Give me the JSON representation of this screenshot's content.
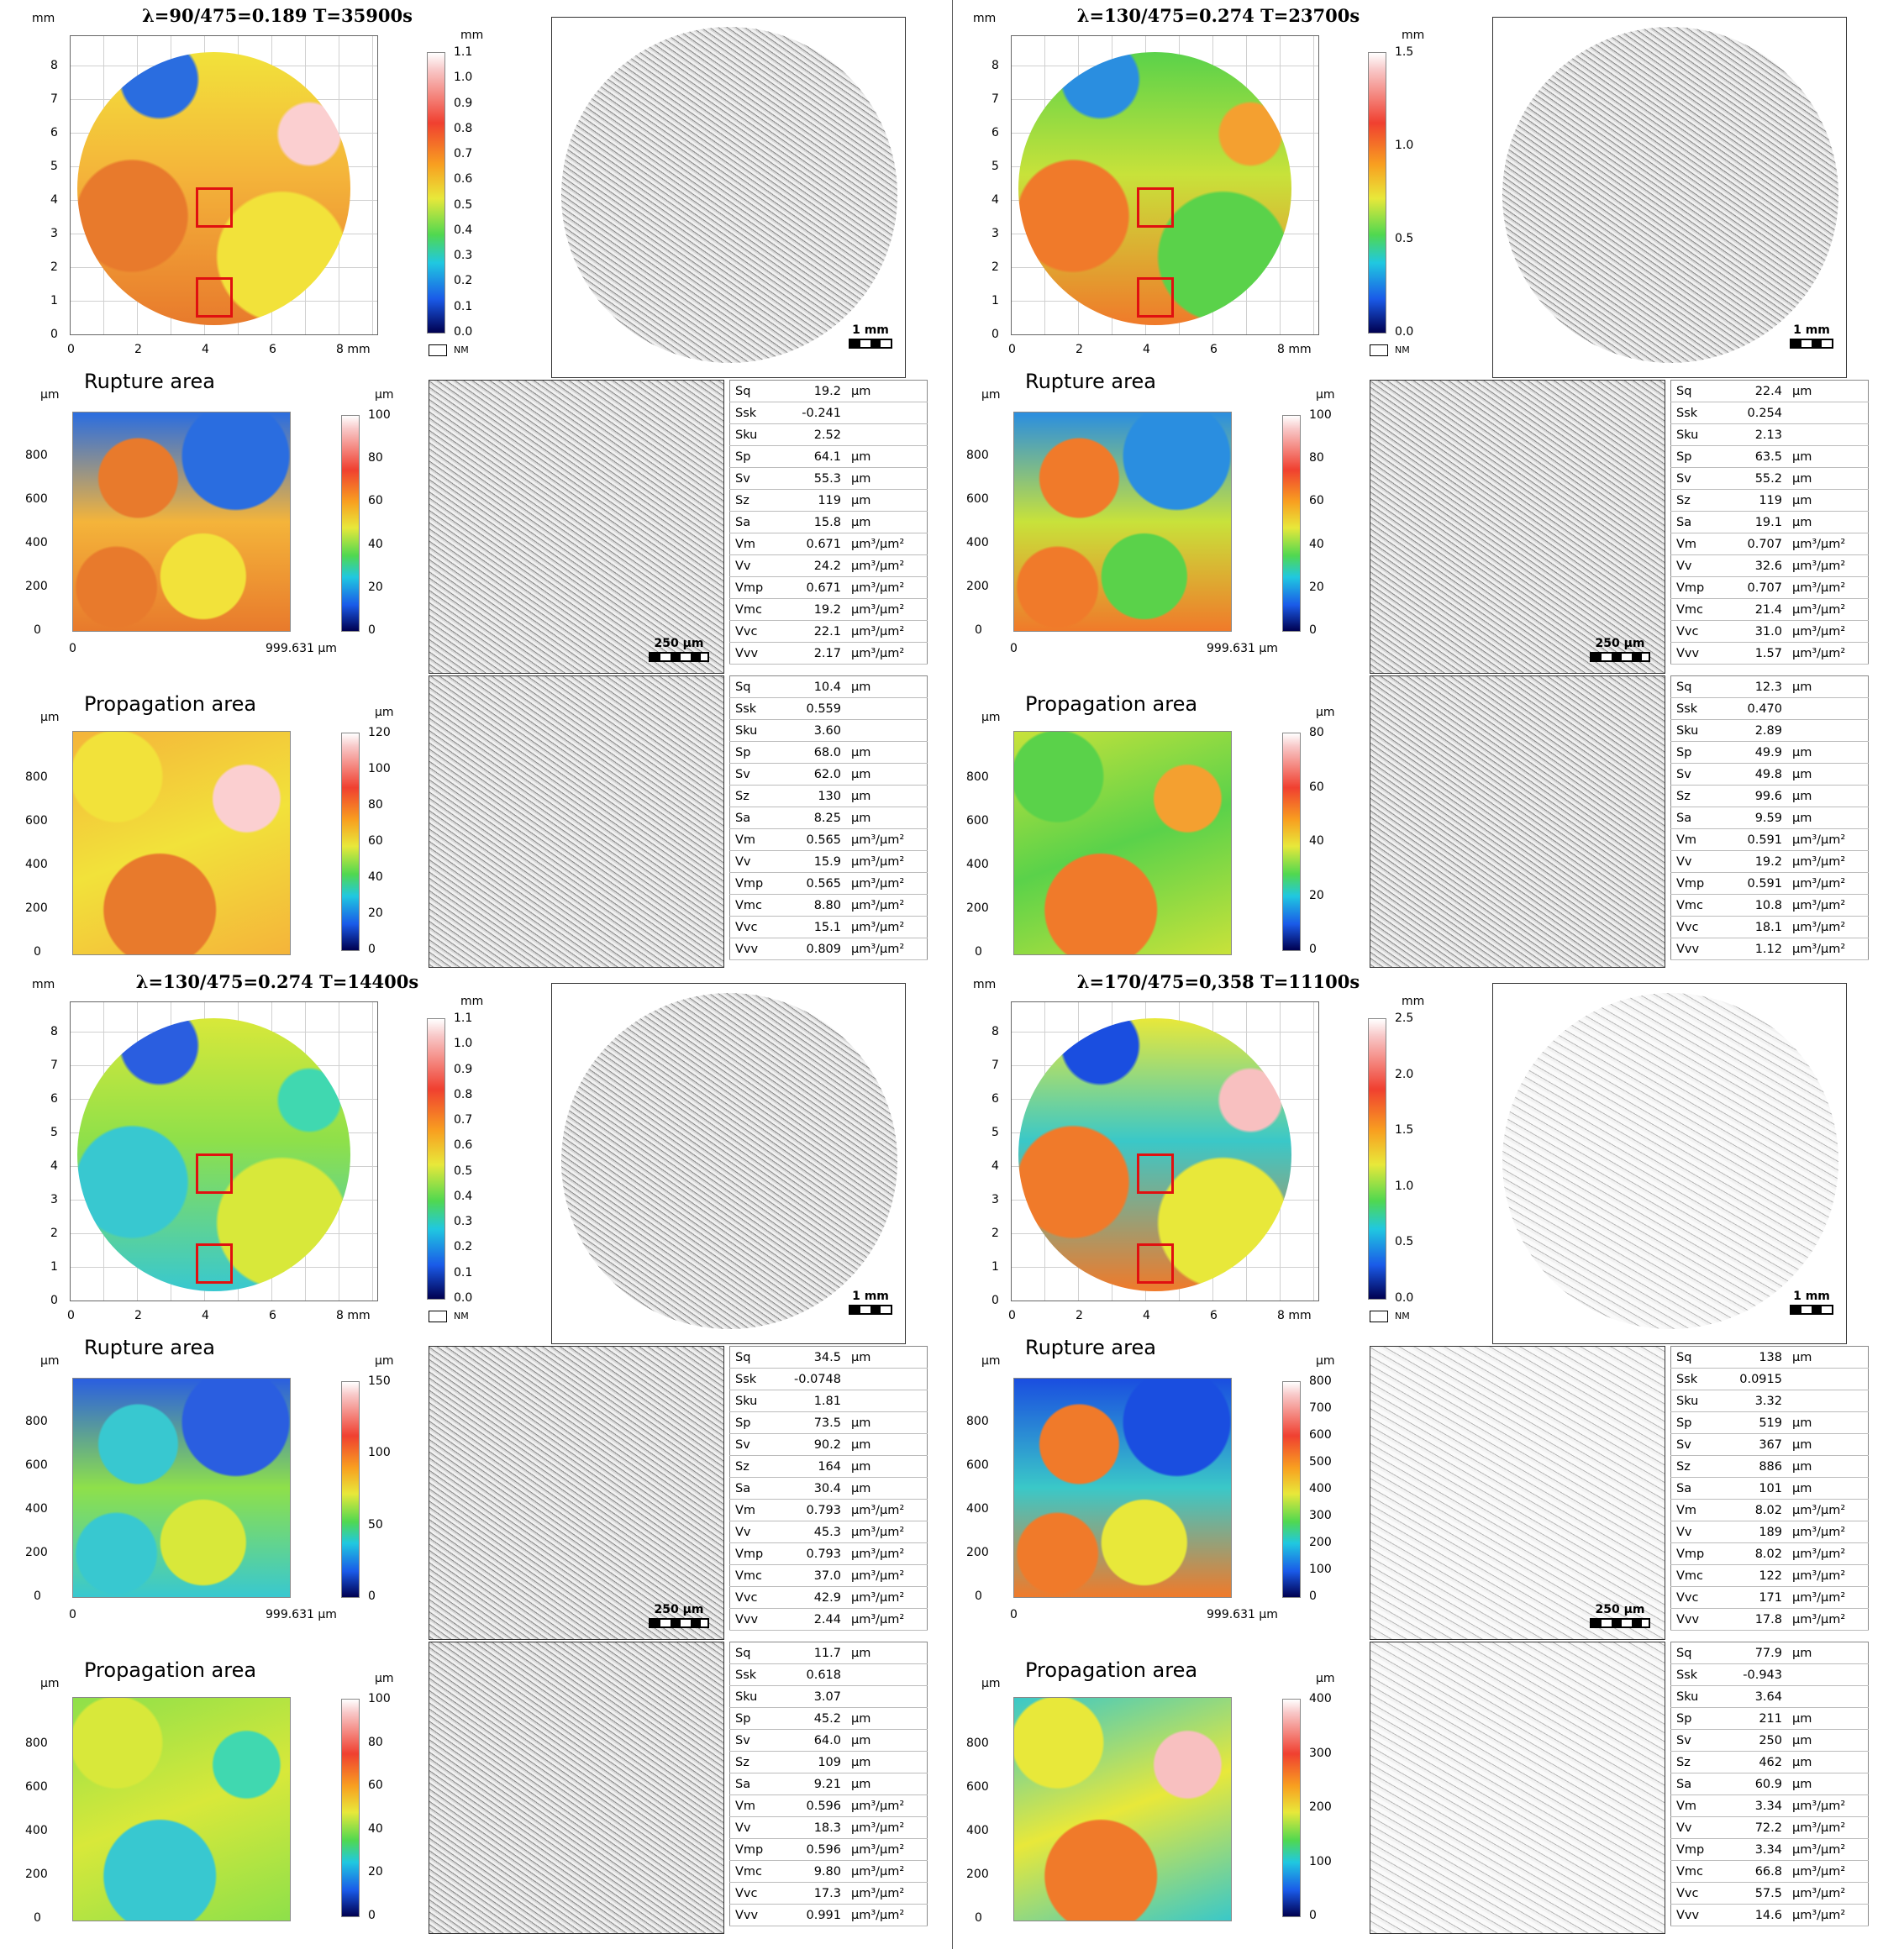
{
  "labels": {
    "mm": "mm",
    "um": "µm",
    "nm": "NM",
    "mm_axis_end": "8 mm",
    "um_axis_end": "999.631 µm",
    "scale_1mm": "1 mm",
    "scale_250um": "250 µm",
    "rupture": "Rupture area",
    "propagation": "Propagation area"
  },
  "mm_ticks": [
    "0",
    "1",
    "2",
    "3",
    "4",
    "5",
    "6",
    "7",
    "8"
  ],
  "mm_xticks": [
    "0",
    "2",
    "4",
    "6"
  ],
  "um_yticks": [
    "0",
    "200",
    "400",
    "600",
    "800"
  ],
  "um_xtick0": "0",
  "param_names": [
    "Sq",
    "Ssk",
    "Sku",
    "Sp",
    "Sv",
    "Sz",
    "Sa",
    "Vm",
    "Vv",
    "Vmp",
    "Vmc",
    "Vvc",
    "Vvv"
  ],
  "colors": {
    "frame": "#8c8c8c",
    "marker": "#e01010",
    "grid": "#b0b0b0"
  },
  "panels": [
    {
      "title": "λ=90/475=0.189  T=35900s",
      "map_colors": {
        "base": "#f4b43a",
        "c1": "#e87a2c",
        "c2": "#f2e23a",
        "c3": "#2a6de0",
        "c4": "#fbcfd0"
      },
      "mm_scale": [
        "1.1",
        "1.0",
        "0.9",
        "0.8",
        "0.7",
        "0.6",
        "0.5",
        "0.4",
        "0.3",
        "0.2",
        "0.1",
        "0.0"
      ],
      "rupture_scale": [
        "100",
        "80",
        "60",
        "40",
        "20",
        "0"
      ],
      "prop_scale": [
        "120",
        "100",
        "80",
        "60",
        "40",
        "20",
        "0"
      ],
      "rupture_params": [
        [
          "19.2",
          "µm"
        ],
        [
          "-0.241",
          ""
        ],
        [
          "2.52",
          ""
        ],
        [
          "64.1",
          "µm"
        ],
        [
          "55.3",
          "µm"
        ],
        [
          "119",
          "µm"
        ],
        [
          "15.8",
          "µm"
        ],
        [
          "0.671",
          "µm³/µm²"
        ],
        [
          "24.2",
          "µm³/µm²"
        ],
        [
          "0.671",
          "µm³/µm²"
        ],
        [
          "19.2",
          "µm³/µm²"
        ],
        [
          "22.1",
          "µm³/µm²"
        ],
        [
          "2.17",
          "µm³/µm²"
        ]
      ],
      "prop_params": [
        [
          "10.4",
          "µm"
        ],
        [
          "0.559",
          ""
        ],
        [
          "3.60",
          ""
        ],
        [
          "68.0",
          "µm"
        ],
        [
          "62.0",
          "µm"
        ],
        [
          "130",
          "µm"
        ],
        [
          "8.25",
          "µm"
        ],
        [
          "0.565",
          "µm³/µm²"
        ],
        [
          "15.9",
          "µm³/µm²"
        ],
        [
          "0.565",
          "µm³/µm²"
        ],
        [
          "8.80",
          "µm³/µm²"
        ],
        [
          "15.1",
          "µm³/µm²"
        ],
        [
          "0.809",
          "µm³/µm²"
        ]
      ]
    },
    {
      "title": "λ=130/475=0.274  T=23700s",
      "map_colors": {
        "base": "#c8e23a",
        "c1": "#f07a2a",
        "c2": "#5ad24a",
        "c3": "#2a8ee0",
        "c4": "#f4a030"
      },
      "mm_scale": [
        "1.5",
        "1.0",
        "0.5",
        "0.0"
      ],
      "rupture_scale": [
        "100",
        "80",
        "60",
        "40",
        "20",
        "0"
      ],
      "prop_scale": [
        "80",
        "60",
        "40",
        "20",
        "0"
      ],
      "rupture_params": [
        [
          "22.4",
          "µm"
        ],
        [
          "0.254",
          ""
        ],
        [
          "2.13",
          ""
        ],
        [
          "63.5",
          "µm"
        ],
        [
          "55.2",
          "µm"
        ],
        [
          "119",
          "µm"
        ],
        [
          "19.1",
          "µm"
        ],
        [
          "0.707",
          "µm³/µm²"
        ],
        [
          "32.6",
          "µm³/µm²"
        ],
        [
          "0.707",
          "µm³/µm²"
        ],
        [
          "21.4",
          "µm³/µm²"
        ],
        [
          "31.0",
          "µm³/µm²"
        ],
        [
          "1.57",
          "µm³/µm²"
        ]
      ],
      "prop_params": [
        [
          "12.3",
          "µm"
        ],
        [
          "0.470",
          ""
        ],
        [
          "2.89",
          ""
        ],
        [
          "49.9",
          "µm"
        ],
        [
          "49.8",
          "µm"
        ],
        [
          "99.6",
          "µm"
        ],
        [
          "9.59",
          "µm"
        ],
        [
          "0.591",
          "µm³/µm²"
        ],
        [
          "19.2",
          "µm³/µm²"
        ],
        [
          "0.591",
          "µm³/µm²"
        ],
        [
          "10.8",
          "µm³/µm²"
        ],
        [
          "18.1",
          "µm³/µm²"
        ],
        [
          "1.12",
          "µm³/µm²"
        ]
      ]
    },
    {
      "title": "λ=130/475=0.274  T=14400s",
      "map_colors": {
        "base": "#8ee04a",
        "c1": "#38c8d0",
        "c2": "#d8e83a",
        "c3": "#2a5ee0",
        "c4": "#40d8b0"
      },
      "mm_scale": [
        "1.1",
        "1.0",
        "0.9",
        "0.8",
        "0.7",
        "0.6",
        "0.5",
        "0.4",
        "0.3",
        "0.2",
        "0.1",
        "0.0"
      ],
      "rupture_scale": [
        "150",
        "100",
        "50",
        "0"
      ],
      "prop_scale": [
        "100",
        "80",
        "60",
        "40",
        "20",
        "0"
      ],
      "rupture_params": [
        [
          "34.5",
          "µm"
        ],
        [
          "-0.0748",
          ""
        ],
        [
          "1.81",
          ""
        ],
        [
          "73.5",
          "µm"
        ],
        [
          "90.2",
          "µm"
        ],
        [
          "164",
          "µm"
        ],
        [
          "30.4",
          "µm"
        ],
        [
          "0.793",
          "µm³/µm²"
        ],
        [
          "45.3",
          "µm³/µm²"
        ],
        [
          "0.793",
          "µm³/µm²"
        ],
        [
          "37.0",
          "µm³/µm²"
        ],
        [
          "42.9",
          "µm³/µm²"
        ],
        [
          "2.44",
          "µm³/µm²"
        ]
      ],
      "prop_params": [
        [
          "11.7",
          "µm"
        ],
        [
          "0.618",
          ""
        ],
        [
          "3.07",
          ""
        ],
        [
          "45.2",
          "µm"
        ],
        [
          "64.0",
          "µm"
        ],
        [
          "109",
          "µm"
        ],
        [
          "9.21",
          "µm"
        ],
        [
          "0.596",
          "µm³/µm²"
        ],
        [
          "18.3",
          "µm³/µm²"
        ],
        [
          "0.596",
          "µm³/µm²"
        ],
        [
          "9.80",
          "µm³/µm²"
        ],
        [
          "17.3",
          "µm³/µm²"
        ],
        [
          "0.991",
          "µm³/µm²"
        ]
      ]
    },
    {
      "title": "λ=170/475=0,358  T=11100s",
      "map_colors": {
        "base": "#3ac8c8",
        "c1": "#f07a2a",
        "c2": "#e8e83a",
        "c3": "#1a4ee0",
        "c4": "#f8c0c0"
      },
      "mm_scale": [
        "2.5",
        "2.0",
        "1.5",
        "1.0",
        "0.5",
        "0.0"
      ],
      "rupture_scale": [
        "800",
        "700",
        "600",
        "500",
        "400",
        "300",
        "200",
        "100",
        "0"
      ],
      "prop_scale": [
        "400",
        "300",
        "200",
        "100",
        "0"
      ],
      "rupture_params": [
        [
          "138",
          "µm"
        ],
        [
          "0.0915",
          ""
        ],
        [
          "3.32",
          ""
        ],
        [
          "519",
          "µm"
        ],
        [
          "367",
          "µm"
        ],
        [
          "886",
          "µm"
        ],
        [
          "101",
          "µm"
        ],
        [
          "8.02",
          "µm³/µm²"
        ],
        [
          "189",
          "µm³/µm²"
        ],
        [
          "8.02",
          "µm³/µm²"
        ],
        [
          "122",
          "µm³/µm²"
        ],
        [
          "171",
          "µm³/µm²"
        ],
        [
          "17.8",
          "µm³/µm²"
        ]
      ],
      "prop_params": [
        [
          "77.9",
          "µm"
        ],
        [
          "-0.943",
          ""
        ],
        [
          "3.64",
          ""
        ],
        [
          "211",
          "µm"
        ],
        [
          "250",
          "µm"
        ],
        [
          "462",
          "µm"
        ],
        [
          "60.9",
          "µm"
        ],
        [
          "3.34",
          "µm³/µm²"
        ],
        [
          "72.2",
          "µm³/µm²"
        ],
        [
          "3.34",
          "µm³/µm²"
        ],
        [
          "66.8",
          "µm³/µm²"
        ],
        [
          "57.5",
          "µm³/µm²"
        ],
        [
          "14.6",
          "µm³/µm²"
        ]
      ]
    }
  ]
}
